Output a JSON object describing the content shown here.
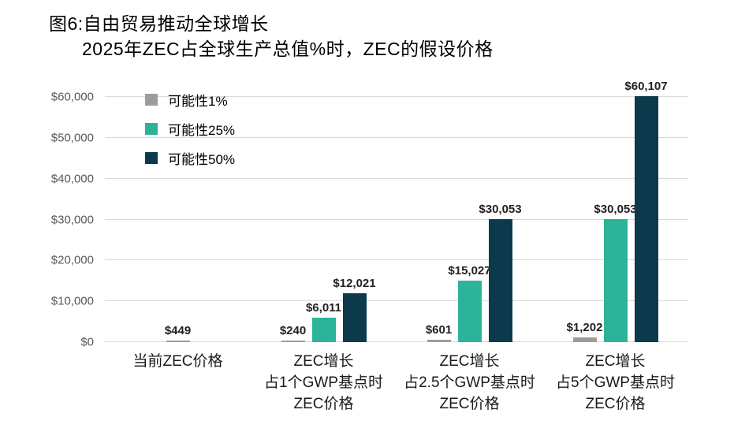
{
  "title": {
    "line1": "图6:自由贸易推动全球增长",
    "line2": "2025年ZEC占全球生产总值%时，ZEC的假设价格"
  },
  "legend": [
    {
      "key": "p1",
      "label": "可能性1%",
      "color": "#9c9c9c"
    },
    {
      "key": "p25",
      "label": "可能性25%",
      "color": "#2db398"
    },
    {
      "key": "p50",
      "label": "可能性50%",
      "color": "#0c3a4c"
    }
  ],
  "y_axis": {
    "ticks": [
      "$0",
      "$10,000",
      "$20,000",
      "$30,000",
      "$40,000",
      "$50,000",
      "$60,000"
    ],
    "max": 60000
  },
  "chart_data": {
    "type": "bar",
    "title": "图6:自由贸易推动全球增长",
    "subtitle": "2025年ZEC占全球生产总值%时，ZEC的假设价格",
    "categories": [
      [
        "当前ZEC价格"
      ],
      [
        "ZEC增长",
        "占1个GWP基点时",
        "ZEC价格"
      ],
      [
        "ZEC增长",
        "占2.5个GWP基点时",
        "ZEC价格"
      ],
      [
        "ZEC增长",
        "占5个GWP基点时",
        "ZEC价格"
      ]
    ],
    "series": [
      {
        "name": "可能性1%",
        "key": "p1",
        "color": "#9c9c9c",
        "values": [
          449,
          240,
          601,
          1202
        ],
        "labels": [
          "$449",
          "$240",
          "$601",
          "$1,202"
        ]
      },
      {
        "name": "可能性25%",
        "key": "p25",
        "color": "#2db398",
        "values": [
          null,
          6011,
          15027,
          30053
        ],
        "labels": [
          null,
          "$6,011",
          "$15,027",
          "$30,053"
        ]
      },
      {
        "name": "可能性50%",
        "key": "p50",
        "color": "#0c3a4c",
        "values": [
          null,
          12021,
          30053,
          60107
        ],
        "labels": [
          null,
          "$12,021",
          "$30,053",
          "$60,107"
        ]
      }
    ],
    "ylim": [
      0,
      60000
    ],
    "ytick_step": 10000,
    "grid": "horizontal",
    "legend_position": "top-left-inside"
  }
}
